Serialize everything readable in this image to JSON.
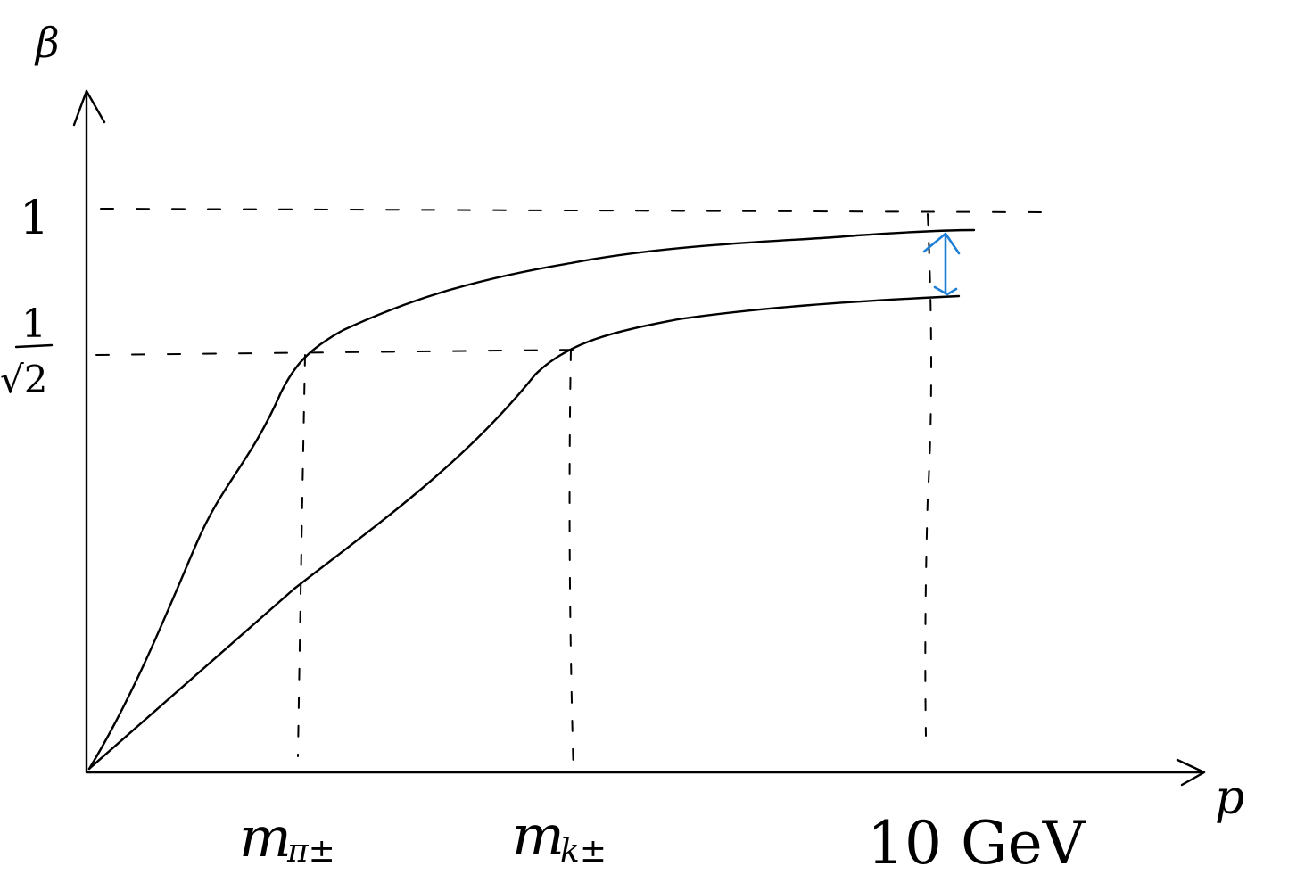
{
  "axes": {
    "y_label": "β",
    "x_label": "p"
  },
  "y_ticks": {
    "one": "1",
    "inv_sqrt2_num": "1",
    "inv_sqrt2_den": "√2"
  },
  "x_ticks": {
    "pion": "m",
    "pion_sub": "π±",
    "kaon": "m",
    "kaon_sub": "k±",
    "ten_gev": "10 GeV"
  },
  "colors": {
    "ink": "#000000",
    "separation_arrow": "#1e7fd6"
  },
  "curves": [
    {
      "particle": "pion",
      "shape": "steep rise, crosses 1/√2 at p = m_π±, approaches 1"
    },
    {
      "particle": "kaon",
      "shape": "slower rise, crosses 1/√2 at p = m_k±, approaches 1"
    }
  ]
}
